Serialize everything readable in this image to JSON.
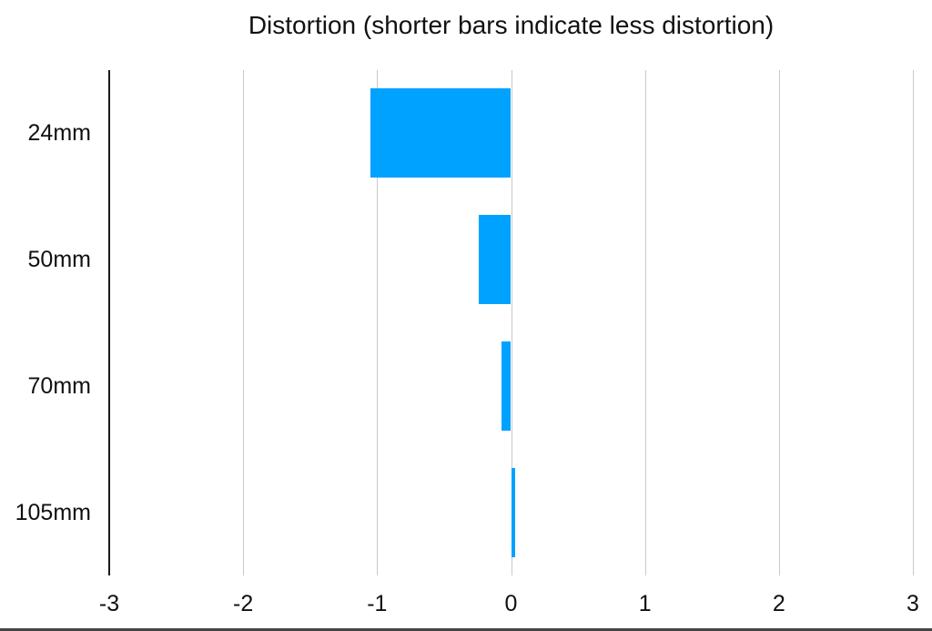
{
  "page": {
    "background": "#ffffff",
    "bottom_edge_color": "#454545"
  },
  "chart_data": {
    "type": "bar",
    "orientation": "horizontal",
    "title": "Distortion (shorter bars indicate less distortion)",
    "categories": [
      "24mm",
      "50mm",
      "70mm",
      "105mm"
    ],
    "values": [
      -1.05,
      -0.24,
      -0.07,
      0.03
    ],
    "xlim": [
      -3,
      3
    ],
    "x_tick_labels": [
      "-3",
      "-2",
      "-1",
      "0",
      "1",
      "2",
      "3"
    ],
    "x_tick_values": [
      -3,
      -2,
      -1,
      0,
      1,
      2,
      3
    ],
    "grid": true,
    "legend": false,
    "bar_color": "#00a2ff",
    "gridline_color": "#c9c9c9",
    "axis_line_color": "#1a1a1a",
    "label_color": "#111111"
  }
}
